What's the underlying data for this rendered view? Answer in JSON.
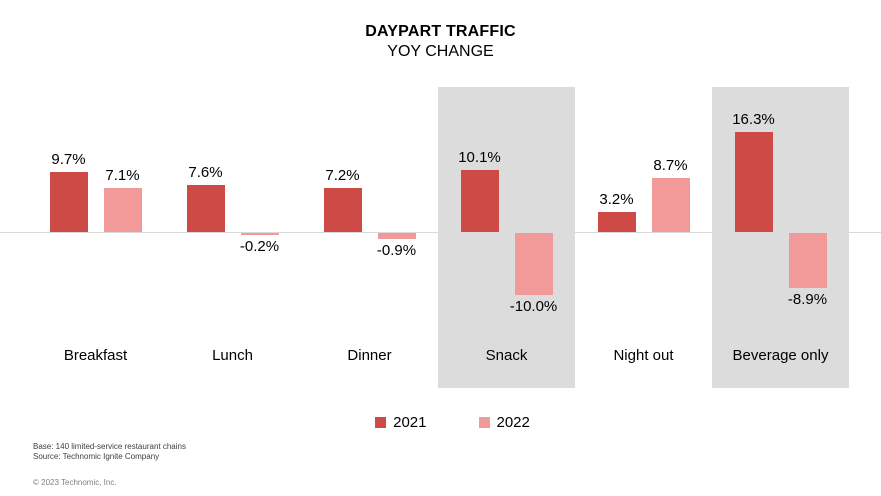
{
  "title": "DAYPART TRAFFIC",
  "subtitle": "YOY CHANGE",
  "chart_data": {
    "type": "bar",
    "unit": "%",
    "categories": [
      "Breakfast",
      "Lunch",
      "Dinner",
      "Snack",
      "Night out",
      "Beverage only"
    ],
    "highlight_indices": [
      3,
      5
    ],
    "highlight_color": "#dcdcdc",
    "series": [
      {
        "name": "2021",
        "color": "#cd4a47",
        "values": [
          9.7,
          7.6,
          7.2,
          10.1,
          3.2,
          16.3
        ],
        "labels": [
          "9.7%",
          "7.6%",
          "7.2%",
          "10.1%",
          "3.2%",
          "16.3%"
        ]
      },
      {
        "name": "2022",
        "color": "#f19a99",
        "values": [
          7.1,
          -0.2,
          -0.9,
          -10.0,
          8.7,
          -8.9
        ],
        "labels": [
          "7.1%",
          "-0.2%",
          "-0.9%",
          "-10.0%",
          "8.7%",
          "-8.9%"
        ]
      }
    ],
    "xlabel": "",
    "ylabel": "",
    "ylim": [
      -12,
      18
    ],
    "grid": false,
    "legend_position": "bottom",
    "baseline_color": "#d9d9d9"
  },
  "footnotes": {
    "base": "Base: 140 limited-service restaurant chains",
    "source": "Source: Technomic Ignite Company"
  },
  "copyright": "© 2023 Technomic, Inc."
}
